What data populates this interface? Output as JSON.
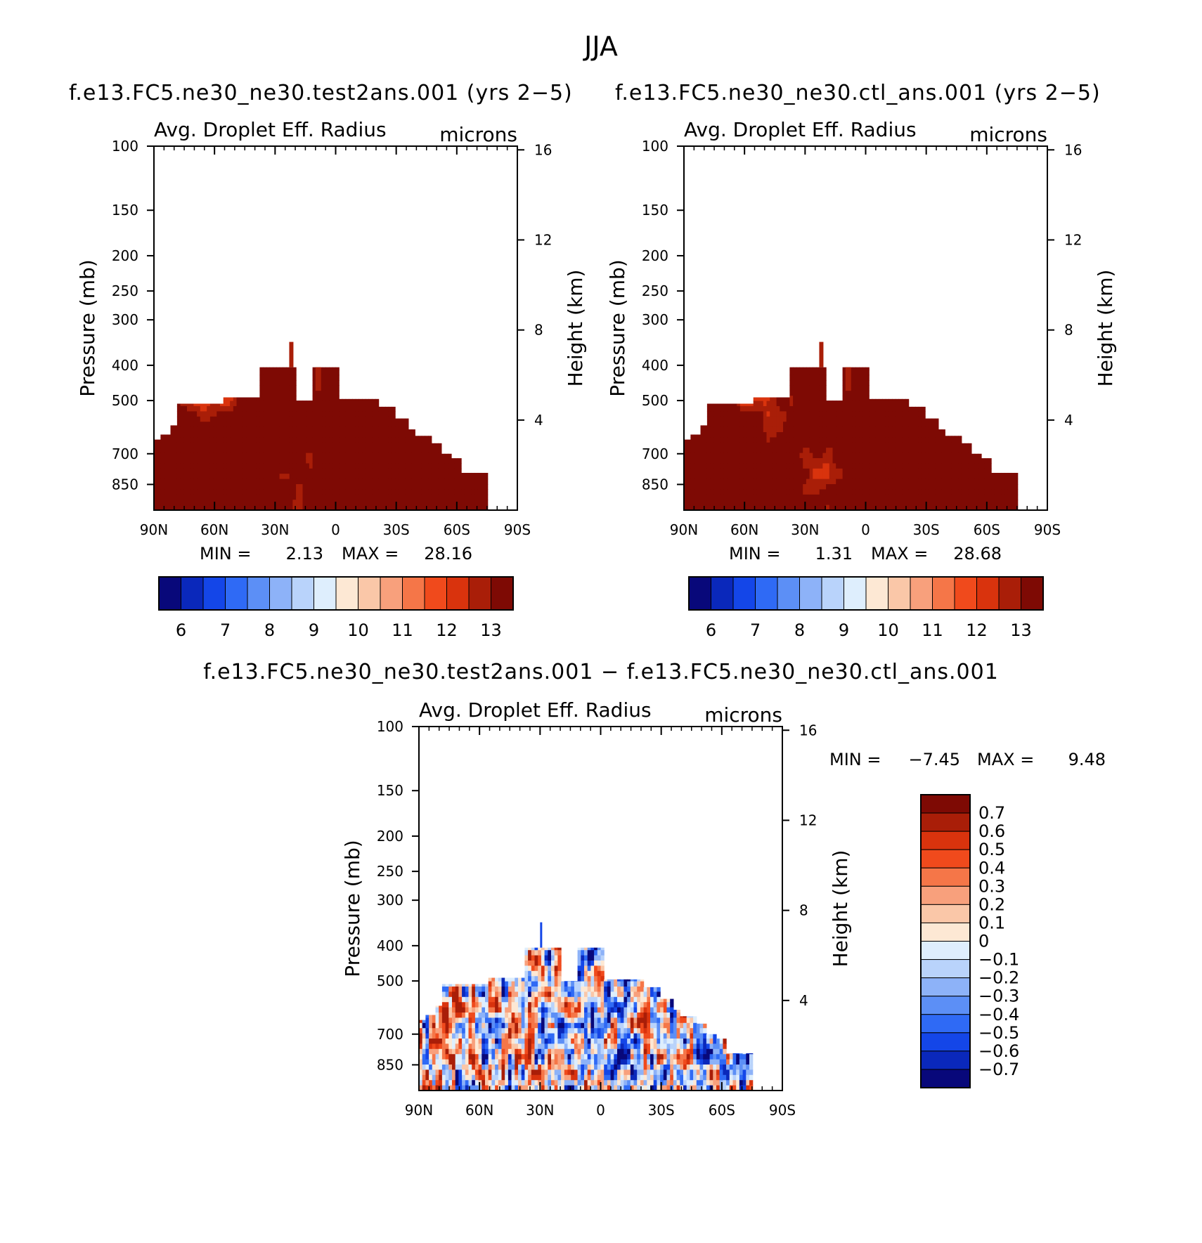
{
  "figure": {
    "title": "JJA"
  },
  "panels": [
    {
      "title": "f.e13.FC5.ne30_ne30.test2ans.001 (yrs 2−5)",
      "variable": "Avg. Droplet Eff. Radius",
      "units": "microns",
      "stats": {
        "min_label": "MIN =",
        "min": "2.13",
        "max_label": "MAX =",
        "max": "28.16"
      }
    },
    {
      "title": "f.e13.FC5.ne30_ne30.ctl_ans.001 (yrs 2−5)",
      "variable": "Avg. Droplet Eff. Radius",
      "units": "microns",
      "stats": {
        "min_label": "MIN =",
        "min": "1.31",
        "max_label": "MAX =",
        "max": "28.68"
      }
    },
    {
      "title": "f.e13.FC5.ne30_ne30.test2ans.001 − f.e13.FC5.ne30_ne30.ctl_ans.001",
      "variable": "Avg. Droplet Eff. Radius",
      "units": "microns",
      "stats": {
        "min_label": "MIN =",
        "min": "−7.45",
        "max_label": "MAX =",
        "max": "9.48"
      }
    }
  ],
  "axes": {
    "ylabel_left": "Pressure (mb)",
    "ylabel_right": "Height (km)",
    "pressure_ticks": [
      "100",
      "150",
      "200",
      "250",
      "300",
      "400",
      "500",
      "700",
      "850"
    ],
    "pressure_values": [
      100,
      150,
      200,
      250,
      300,
      400,
      500,
      700,
      850
    ],
    "height_ticks": [
      "16",
      "12",
      "8",
      "4"
    ],
    "height_values": [
      16,
      12,
      8,
      4
    ],
    "lat_ticks": [
      "90N",
      "60N",
      "30N",
      "0",
      "30S",
      "60S",
      "90S"
    ]
  },
  "colorbars": {
    "abs_labels": [
      "6",
      "7",
      "8",
      "9",
      "10",
      "11",
      "12",
      "13"
    ],
    "abs_colors": [
      "#08087a",
      "#0a28bb",
      "#1446e8",
      "#2f6af5",
      "#5c8ff6",
      "#8db2f8",
      "#b9d3fb",
      "#deeefd",
      "#fde8d4",
      "#fac7a8",
      "#f8a07c",
      "#f57648",
      "#f04a1c",
      "#d9330d",
      "#a91e08",
      "#7e0a04"
    ],
    "diff_labels": [
      "0.7",
      "0.6",
      "0.5",
      "0.4",
      "0.3",
      "0.2",
      "0.1",
      "0",
      "−0.1",
      "−0.2",
      "−0.3",
      "−0.4",
      "−0.5",
      "−0.6",
      "−0.7"
    ],
    "diff_colors": [
      "#7e0a04",
      "#a91e08",
      "#d9330d",
      "#f04a1c",
      "#f57648",
      "#f8a07c",
      "#fac7a8",
      "#fde8d4",
      "#deeefd",
      "#b9d3fb",
      "#8db2f8",
      "#5c8ff6",
      "#2f6af5",
      "#1446e8",
      "#0a28bb",
      "#08087a"
    ]
  },
  "chart_data": [
    {
      "type": "heatmap",
      "title": "f.e13.FC5.ne30_ne30.test2ans.001 (yrs 2−5)",
      "variable": "Avg. Droplet Eff. Radius (microns)",
      "xlabel": "",
      "ylabel": "Pressure (mb)",
      "x_categories": [
        "90N",
        "60N",
        "30N",
        "0",
        "30S",
        "60S",
        "90S"
      ],
      "ylim": [
        100,
        1000
      ],
      "colorbar_levels": [
        5.5,
        6,
        6.5,
        7,
        7.5,
        8,
        8.5,
        9,
        9.5,
        10,
        10.5,
        11,
        11.5,
        12,
        12.5,
        13
      ],
      "min": 2.13,
      "max": 28.16
    },
    {
      "type": "heatmap",
      "title": "f.e13.FC5.ne30_ne30.ctl_ans.001 (yrs 2−5)",
      "variable": "Avg. Droplet Eff. Radius (microns)",
      "xlabel": "",
      "ylabel": "Pressure (mb)",
      "x_categories": [
        "90N",
        "60N",
        "30N",
        "0",
        "30S",
        "60S",
        "90S"
      ],
      "ylim": [
        100,
        1000
      ],
      "colorbar_levels": [
        5.5,
        6,
        6.5,
        7,
        7.5,
        8,
        8.5,
        9,
        9.5,
        10,
        10.5,
        11,
        11.5,
        12,
        12.5,
        13
      ],
      "min": 1.31,
      "max": 28.68
    },
    {
      "type": "heatmap",
      "title": "f.e13.FC5.ne30_ne30.test2ans.001 − f.e13.FC5.ne30_ne30.ctl_ans.001",
      "variable": "Avg. Droplet Eff. Radius (microns)",
      "xlabel": "",
      "ylabel": "Pressure (mb)",
      "x_categories": [
        "90N",
        "60N",
        "30N",
        "0",
        "30S",
        "60S",
        "90S"
      ],
      "ylim": [
        100,
        1000
      ],
      "colorbar_levels": [
        0.7,
        0.6,
        0.5,
        0.4,
        0.3,
        0.2,
        0.1,
        0,
        -0.1,
        -0.2,
        -0.3,
        -0.4,
        -0.5,
        -0.6,
        -0.7
      ],
      "min": -7.45,
      "max": 9.48
    }
  ]
}
